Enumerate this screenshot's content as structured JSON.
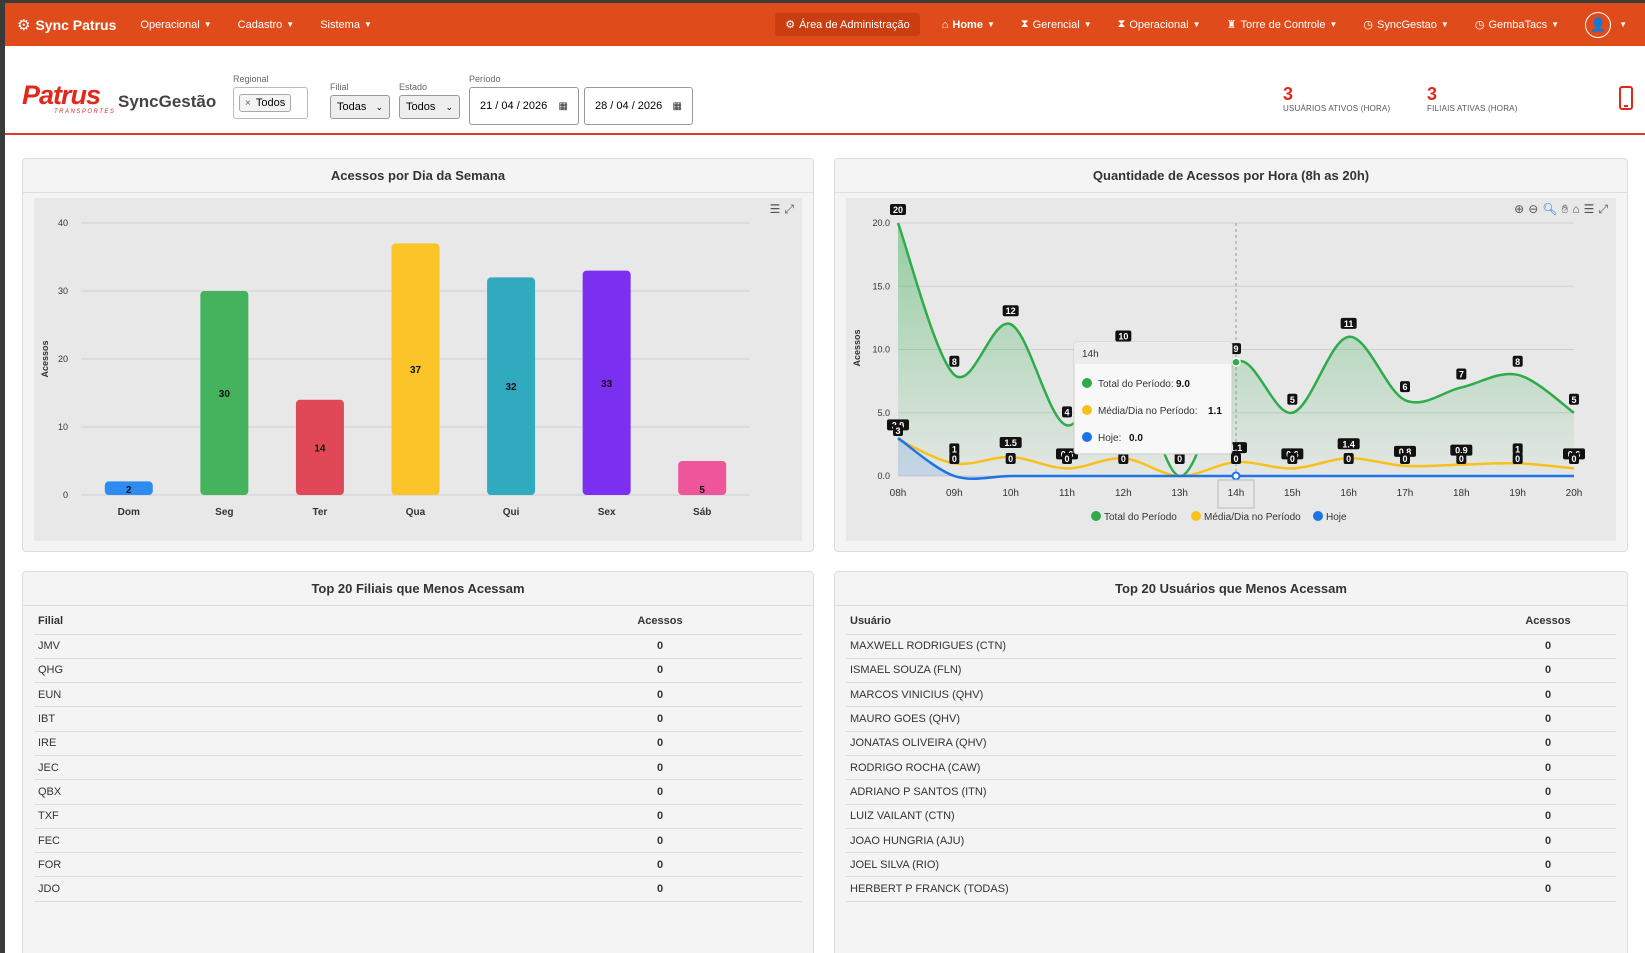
{
  "navbar": {
    "brand": "Sync Patrus",
    "left_items": [
      "Operacional",
      "Cadastro",
      "Sistema"
    ],
    "admin": "Área de Administração",
    "right_items": [
      {
        "label": "Home",
        "icon": "home-icon",
        "glyph": "⌂"
      },
      {
        "label": "Gerencial",
        "icon": "hourglass-icon",
        "glyph": "⧗"
      },
      {
        "label": "Operacional",
        "icon": "hourglass-icon",
        "glyph": "⧗"
      },
      {
        "label": "Torre de Controle",
        "icon": "tower-icon",
        "glyph": "♜"
      },
      {
        "label": "SyncGestao",
        "icon": "clock-icon",
        "glyph": "◷"
      },
      {
        "label": "GembaTacs",
        "icon": "clock-icon",
        "glyph": "◷"
      }
    ]
  },
  "header": {
    "logo": "Patrus",
    "logo_sub": "TRANSPORTES",
    "app_name": "SyncGestão",
    "filters": {
      "regional_label": "Regional",
      "regional_value": "Todos",
      "filial_label": "Filial",
      "filial_value": "Todas",
      "estado_label": "Estado",
      "estado_value": "Todos",
      "periodo_label": "Período",
      "date_from": "21 / 04 / 2026",
      "date_to": "28 / 04 / 2026"
    },
    "stats": [
      {
        "value": "3",
        "label": "USUÁRIOS ATIVOS (HORA)"
      },
      {
        "value": "3",
        "label": "FILIAIS ATIVAS (HORA)"
      }
    ]
  },
  "weekday_panel": {
    "title": "Acessos por Dia da Semana",
    "chart_data": {
      "type": "bar",
      "categories": [
        "Dom",
        "Seg",
        "Ter",
        "Qua",
        "Qui",
        "Sex",
        "Sáb"
      ],
      "values": [
        2,
        30,
        14,
        37,
        32,
        33,
        5
      ],
      "colors": [
        "#2e8cf0",
        "#45b25d",
        "#e04858",
        "#fbc52a",
        "#31a9bf",
        "#7b2ff0",
        "#ee559b"
      ],
      "ylabel": "Acessos",
      "yticks": [
        0,
        10,
        20,
        30,
        40
      ],
      "ylim": [
        0,
        40
      ]
    }
  },
  "hourly_panel": {
    "title": "Quantidade de Acessos por Hora (8h as 20h)",
    "chart_data": {
      "type": "line",
      "x": [
        "08h",
        "09h",
        "10h",
        "11h",
        "12h",
        "13h",
        "14h",
        "15h",
        "16h",
        "17h",
        "18h",
        "19h",
        "20h"
      ],
      "ylabel": "Acessos",
      "yticks": [
        "0.0",
        "5.0",
        "10.0",
        "15.0",
        "20.0"
      ],
      "ylim": [
        0,
        20
      ],
      "series": [
        {
          "name": "Total do Período",
          "color": "#2eab4a",
          "values": [
            20,
            8,
            12,
            4,
            10,
            0,
            9,
            5,
            11,
            6,
            7,
            8,
            5
          ],
          "labels": [
            "20",
            "8",
            "12",
            "4",
            "10",
            "",
            "9",
            "5",
            "11",
            "6",
            "7",
            "8",
            "5"
          ]
        },
        {
          "name": "Média/Dia no Período",
          "color": "#f9c01c",
          "values": [
            2.9,
            1,
            1.5,
            0.6,
            1.4,
            0,
            1.1,
            0.6,
            1.4,
            0.8,
            0.9,
            1,
            0.6
          ],
          "labels": [
            "2.9",
            "1",
            "1.5",
            "0.6",
            "",
            "",
            "1.1",
            "0.6",
            "1.4",
            "0.8",
            "0.9",
            "1",
            "0.6"
          ]
        },
        {
          "name": "Hoje",
          "color": "#1d73e8",
          "values": [
            3,
            0,
            0,
            0,
            0,
            0,
            0,
            0,
            0,
            0,
            0,
            0,
            0
          ],
          "labels": [
            "3",
            "0",
            "0",
            "0",
            "0",
            "0",
            "0",
            "0",
            "0",
            "0",
            "0",
            "0",
            "0"
          ]
        }
      ],
      "tooltip": {
        "title": "14h",
        "rows": [
          {
            "label": "Total do Período:",
            "value": "9.0",
            "color": "#2eab4a"
          },
          {
            "label": "Média/Dia no Período:",
            "value": "1.1",
            "color": "#f9c01c"
          },
          {
            "label": "Hoje:",
            "value": "0.0",
            "color": "#1d73e8"
          }
        ]
      },
      "legend_position": "bottom"
    }
  },
  "filiais_panel": {
    "title": "Top 20 Filiais que Menos Acessam",
    "col1": "Filial",
    "col2": "Acessos",
    "rows": [
      {
        "name": "JMV",
        "value": "0"
      },
      {
        "name": "QHG",
        "value": "0"
      },
      {
        "name": "EUN",
        "value": "0"
      },
      {
        "name": "IBT",
        "value": "0"
      },
      {
        "name": "IRE",
        "value": "0"
      },
      {
        "name": "JEC",
        "value": "0"
      },
      {
        "name": "QBX",
        "value": "0"
      },
      {
        "name": "TXF",
        "value": "0"
      },
      {
        "name": "FEC",
        "value": "0"
      },
      {
        "name": "FOR",
        "value": "0"
      },
      {
        "name": "JDO",
        "value": "0"
      }
    ]
  },
  "usuarios_panel": {
    "title": "Top 20 Usuários que Menos Acessam",
    "col1": "Usuário",
    "col2": "Acessos",
    "rows": [
      {
        "name": "MAXWELL RODRIGUES (CTN)",
        "value": "0"
      },
      {
        "name": "ISMAEL SOUZA (FLN)",
        "value": "0"
      },
      {
        "name": "MARCOS VINICIUS (QHV)",
        "value": "0"
      },
      {
        "name": "MAURO GOES (QHV)",
        "value": "0"
      },
      {
        "name": "JONATAS OLIVEIRA (QHV)",
        "value": "0"
      },
      {
        "name": "RODRIGO ROCHA (CAW)",
        "value": "0"
      },
      {
        "name": "ADRIANO P SANTOS (ITN)",
        "value": "0"
      },
      {
        "name": "LUIZ VAILANT (CTN)",
        "value": "0"
      },
      {
        "name": "JOAO HUNGRIA (AJU)",
        "value": "0"
      },
      {
        "name": "JOEL SILVA (RIO)",
        "value": "0"
      },
      {
        "name": "HERBERT P FRANCK (TODAS)",
        "value": "0"
      }
    ]
  }
}
